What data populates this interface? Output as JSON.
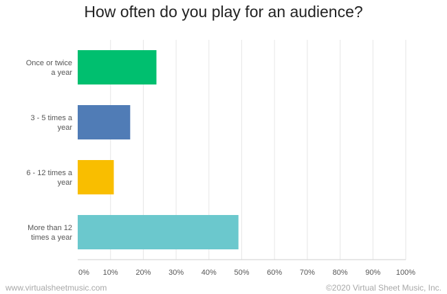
{
  "chart_data": {
    "type": "bar",
    "orientation": "horizontal",
    "title": "How often do you play for an audience?",
    "categories": [
      [
        "Once or twice",
        "a year"
      ],
      [
        "3 - 5 times a",
        "year"
      ],
      [
        "6 - 12 times a",
        "year"
      ],
      [
        "More than 12",
        "times a year"
      ]
    ],
    "values": [
      24,
      16,
      11,
      49
    ],
    "colors": [
      "#00bf6f",
      "#507cb6",
      "#f9be00",
      "#6bc8cd"
    ],
    "xlim": [
      0,
      100
    ],
    "x_ticks": [
      0,
      10,
      20,
      30,
      40,
      50,
      60,
      70,
      80,
      90,
      100
    ],
    "x_tick_labels": [
      "0%",
      "10%",
      "20%",
      "30%",
      "40%",
      "50%",
      "60%",
      "70%",
      "80%",
      "90%",
      "100%"
    ],
    "grid": true,
    "legend": "none"
  },
  "footer": {
    "left": "www.virtualsheetmusic.com",
    "right": "©2020 Virtual Sheet Music, Inc."
  }
}
